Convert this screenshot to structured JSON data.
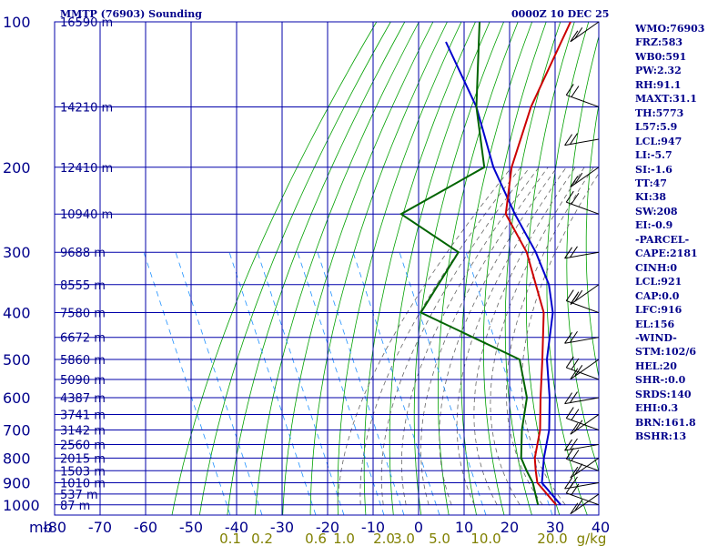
{
  "chart_data": {
    "type": "skew-t",
    "title": "MMTP (76903) Sounding",
    "time_label": "0000Z 10 DEC 25",
    "mb_label": "mb",
    "gkg_label": "g/kg",
    "pressure_ticks": [
      "100",
      "200",
      "300",
      "400",
      "500",
      "600",
      "700",
      "800",
      "900",
      "1000"
    ],
    "temp_ticks": [
      "-80",
      "-70",
      "-60",
      "-50",
      "-40",
      "-30",
      "-20",
      "-10",
      "0",
      "10",
      "20",
      "30",
      "40"
    ],
    "mixing_ratio_ticks": [
      "0.1",
      "0.2",
      "0.6",
      "1.0",
      "2.0",
      "3.0",
      "5.0",
      "10.0",
      "20.0"
    ],
    "height_labels": [
      {
        "p": 100,
        "text": "16590 m"
      },
      {
        "p": 150,
        "text": "14210 m"
      },
      {
        "p": 200,
        "text": "12410 m"
      },
      {
        "p": 250,
        "text": "10940 m"
      },
      {
        "p": 300,
        "text": "9688 m"
      },
      {
        "p": 350,
        "text": "8555 m"
      },
      {
        "p": 400,
        "text": "7580 m"
      },
      {
        "p": 450,
        "text": "6672 m"
      },
      {
        "p": 500,
        "text": "5860 m"
      },
      {
        "p": 550,
        "text": "5090 m"
      },
      {
        "p": 600,
        "text": "4387 m"
      },
      {
        "p": 650,
        "text": "3741 m"
      },
      {
        "p": 700,
        "text": "3142 m"
      },
      {
        "p": 750,
        "text": "2560 m"
      },
      {
        "p": 800,
        "text": "2015 m"
      },
      {
        "p": 850,
        "text": "1503 m"
      },
      {
        "p": 900,
        "text": "1010 m"
      },
      {
        "p": 950,
        "text": "537 m"
      },
      {
        "p": 1000,
        "text": "87 m"
      }
    ],
    "series": [
      {
        "name": "parcel",
        "color": "#0000cd",
        "points": [
          [
            1000,
            29
          ],
          [
            900,
            20
          ],
          [
            800,
            15
          ],
          [
            700,
            10
          ],
          [
            600,
            3
          ],
          [
            500,
            -6
          ],
          [
            400,
            -15
          ],
          [
            350,
            -22
          ],
          [
            300,
            -32
          ],
          [
            250,
            -45
          ],
          [
            200,
            -60
          ],
          [
            150,
            -77
          ],
          [
            110,
            -98
          ]
        ]
      },
      {
        "name": "temperature",
        "color": "#cc0000",
        "points": [
          [
            1000,
            28
          ],
          [
            900,
            19
          ],
          [
            850,
            16
          ],
          [
            800,
            13
          ],
          [
            700,
            8
          ],
          [
            600,
            1
          ],
          [
            500,
            -7
          ],
          [
            400,
            -17
          ],
          [
            300,
            -34
          ],
          [
            250,
            -47
          ],
          [
            200,
            -56
          ],
          [
            150,
            -65
          ],
          [
            100,
            -75
          ]
        ]
      },
      {
        "name": "dewpoint",
        "color": "#006400",
        "points": [
          [
            1000,
            24
          ],
          [
            900,
            18
          ],
          [
            850,
            14
          ],
          [
            800,
            10
          ],
          [
            700,
            4
          ],
          [
            600,
            -2
          ],
          [
            500,
            -12
          ],
          [
            400,
            -44
          ],
          [
            300,
            -49
          ],
          [
            250,
            -70
          ],
          [
            200,
            -62
          ],
          [
            150,
            -77
          ],
          [
            100,
            -95
          ]
        ]
      }
    ],
    "winds_label_side": "right",
    "stats": [
      "WMO:76903",
      "FRZ:583",
      "WB0:591",
      "PW:2.32",
      "RH:91.1",
      "MAXT:31.1",
      "TH:5773",
      "L57:5.9",
      "LCL:947",
      "LI:-5.7",
      "SI:-1.6",
      "TT:47",
      "KI:38",
      "SW:208",
      "EI:-0.9",
      "-PARCEL-",
      "CAPE:2181",
      "CINH:0",
      "LCL:921",
      "CAP:0.0",
      "LFC:916",
      "EL:156",
      "-WIND-",
      "STM:102/6",
      "HEL:20",
      "SHR-:0.0",
      "SRDS:140",
      "EHI:0.3",
      "BRN:161.8",
      "BSHR:13"
    ]
  },
  "colors": {
    "grid": "#0000aa",
    "dry_adiabat": "#00a000",
    "tick_label": "#00008b",
    "mixing_label": "#808000",
    "barb": "#000000",
    "moist": "#666666",
    "mix": "#1e90ff"
  }
}
